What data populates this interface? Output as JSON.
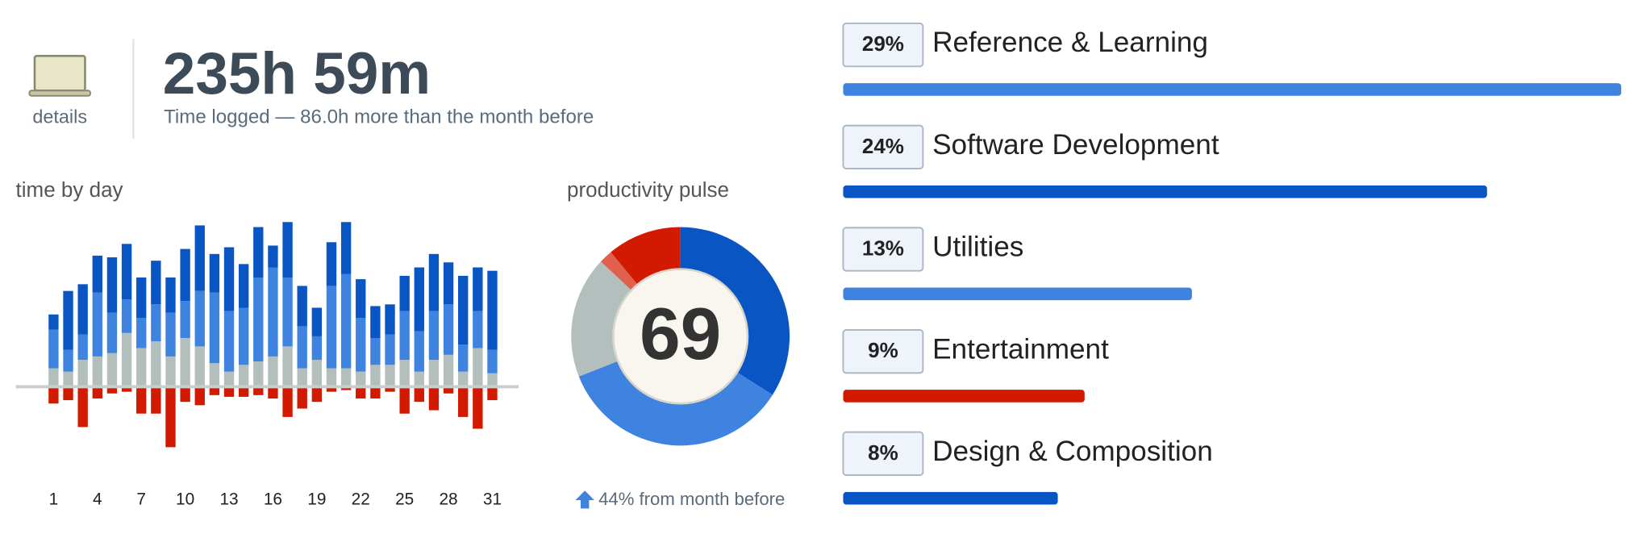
{
  "header": {
    "icon_label": "details",
    "title": "235h 59m",
    "subtitle": "Time logged — 86.0h more than the month before"
  },
  "time_by_day": {
    "type": "bar",
    "title": "time by day",
    "categories": [
      "1",
      null,
      null,
      "4",
      null,
      null,
      "7",
      null,
      null,
      "10",
      null,
      null,
      "13",
      null,
      null,
      "16",
      null,
      null,
      "19",
      null,
      null,
      "22",
      null,
      null,
      "25",
      null,
      null,
      "28",
      null,
      null,
      "31"
    ],
    "series": [
      {
        "color": "#b3bfbd",
        "values": [
          1.1,
          0.9,
          1.6,
          1.8,
          2.0,
          3.2,
          2.3,
          2.7,
          1.8,
          2.9,
          2.4,
          1.4,
          0.9,
          1.3,
          1.5,
          1.8,
          2.4,
          1.1,
          1.6,
          1.1,
          1.1,
          0.9,
          1.3,
          1.3,
          1.6,
          0.9,
          1.6,
          1.9,
          0.9,
          2.3,
          0.8
        ]
      },
      {
        "color": "#3f83e0",
        "values": [
          2.3,
          1.3,
          1.5,
          3.8,
          2.4,
          2.0,
          1.8,
          2.2,
          2.6,
          2.2,
          3.3,
          4.2,
          3.6,
          3.4,
          5.0,
          5.3,
          4.1,
          2.5,
          1.4,
          4.9,
          5.6,
          3.2,
          1.6,
          1.8,
          2.9,
          2.4,
          2.9,
          3.0,
          1.6,
          2.2,
          1.4
        ]
      },
      {
        "color": "#0a55c4",
        "values": [
          0.9,
          3.5,
          3.0,
          2.2,
          3.3,
          3.3,
          2.4,
          2.6,
          2.1,
          3.1,
          3.9,
          2.3,
          3.8,
          2.6,
          3.0,
          1.3,
          3.3,
          2.4,
          1.7,
          2.6,
          3.1,
          2.3,
          1.9,
          1.8,
          2.1,
          3.8,
          3.4,
          2.5,
          4.1,
          2.6,
          4.7
        ]
      },
      {
        "color": "#d21a00",
        "values": [
          -1.0,
          -0.8,
          -2.4,
          -0.7,
          -0.4,
          -0.3,
          -1.6,
          -1.6,
          -3.6,
          -0.9,
          -1.1,
          -0.5,
          -0.6,
          -0.6,
          -0.5,
          -0.7,
          -1.8,
          -1.3,
          -0.9,
          -0.3,
          -0.2,
          -0.7,
          -0.7,
          -0.3,
          -1.6,
          -0.9,
          -1.4,
          -0.4,
          -1.8,
          -2.5,
          -0.8
        ]
      }
    ]
  },
  "productivity_pulse": {
    "type": "pie",
    "title": "productivity pulse",
    "center_value": 69,
    "values": [
      34,
      35,
      18,
      2,
      11
    ],
    "colors": [
      "#0a55c4",
      "#3f83e0",
      "#b3bfbd",
      "#e0604f",
      "#d21a00"
    ],
    "footer": "44% from month before"
  },
  "categories": {
    "type": "bar",
    "items": [
      {
        "label": "Reference & Learning",
        "value": 29,
        "value_label": "29%",
        "color": "#3f83e0"
      },
      {
        "label": "Software Development",
        "value": 24,
        "value_label": "24%",
        "color": "#0a55c4"
      },
      {
        "label": "Utilities",
        "value": 13,
        "value_label": "13%",
        "color": "#3f83e0"
      },
      {
        "label": "Entertainment",
        "value": 9,
        "value_label": "9%",
        "color": "#d21a00"
      },
      {
        "label": "Design & Composition",
        "value": 8,
        "value_label": "8%",
        "color": "#0a55c4"
      }
    ]
  }
}
